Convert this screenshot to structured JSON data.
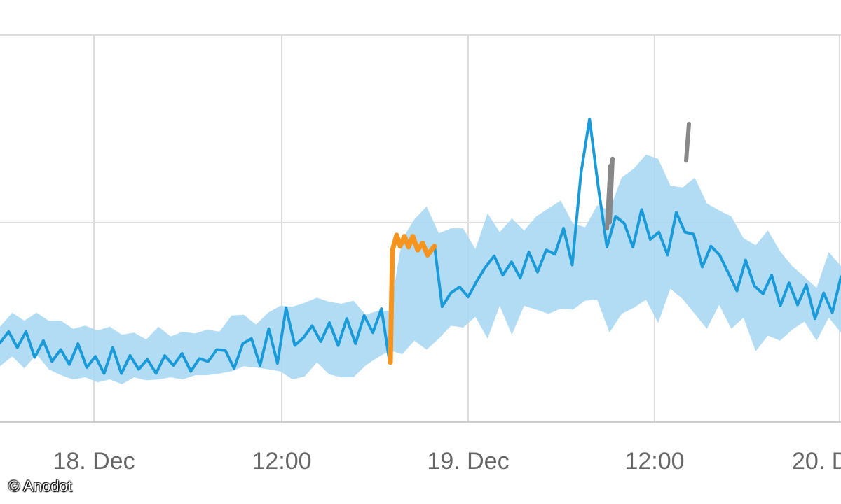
{
  "chart_data": {
    "type": "line",
    "title": "",
    "xlabel": "",
    "ylabel": "",
    "x_tick_labels": [
      "18. Dec",
      "12:00",
      "19. Dec",
      "12:00",
      "20. D"
    ],
    "grid": true,
    "legend": "none",
    "colors": {
      "series": "#1a9ad9",
      "band": "#a9d8f2",
      "anomaly_orange": "#f7941d",
      "anomaly_gray": "#888888",
      "grid": "#dddddd",
      "axis": "#cccccc",
      "tick_label": "#666666"
    },
    "series": [
      {
        "values": [
          26.6,
          30.3,
          25.0,
          30.3,
          21.7,
          27.3,
          20.3,
          24.3,
          19.3,
          26.3,
          18.3,
          22.0,
          16.3,
          25.0,
          16.3,
          22.3,
          17.7,
          21.0,
          16.3,
          22.3,
          19.0,
          23.0,
          17.0,
          21.3,
          20.3,
          24.3,
          24.0,
          18.0,
          26.3,
          28.0,
          19.0,
          31.3,
          19.7,
          38.3,
          25.7,
          28.3,
          32.3,
          27.0,
          33.3,
          25.7,
          34.7,
          26.3,
          35.7,
          30.0,
          38.0,
          26.7,
          20.3,
          20.0,
          20.7,
          24.7,
          41.3,
          38.7,
          43.3,
          45.3,
          42.0,
          47.3,
          52.0,
          55.7,
          49.3,
          53.7,
          48.3,
          57.0,
          50.3,
          57.7,
          56.3,
          65.0,
          52.7,
          83.3,
          101.7,
          79.0,
          58.7,
          69.0,
          66.7,
          58.7,
          71.3,
          61.3,
          63.7,
          56.0,
          70.3,
          63.7,
          63.0,
          52.0,
          59.0,
          56.0,
          50.0,
          44.0,
          54.3,
          45.7,
          43.0,
          49.3,
          39.0,
          46.7,
          39.3,
          46.0,
          34.7,
          43.3,
          36.7,
          48.7
        ]
      }
    ],
    "confidence_band": {
      "upper": [
        32.0,
        36.7,
        34.0,
        36.7,
        34.0,
        34.0,
        31.3,
        32.3,
        30.7,
        32.0,
        29.3,
        30.0,
        27.7,
        32.0,
        28.7,
        30.3,
        29.7,
        31.0,
        30.3,
        35.7,
        36.0,
        32.7,
        36.7,
        39.0,
        38.7,
        40.0,
        41.7,
        40.3,
        39.7,
        40.7,
        36.0,
        37.3,
        37.3,
        61.3,
        68.0,
        72.3,
        63.3,
        65.0,
        65.0,
        58.0,
        70.0,
        63.7,
        68.3,
        64.3,
        69.0,
        71.7,
        74.3,
        66.7,
        65.3,
        72.7,
        71.0,
        82.0,
        85.0,
        89.7,
        88.3,
        79.3,
        78.7,
        82.0,
        73.3,
        71.0,
        69.0,
        61.7,
        59.3,
        64.3,
        57.3,
        52.3,
        48.7,
        45.0,
        57.0,
        52.3
      ],
      "lower": [
        18.7,
        22.0,
        18.0,
        22.7,
        17.7,
        15.7,
        14.3,
        15.0,
        13.3,
        14.3,
        12.7,
        15.0,
        14.0,
        14.3,
        15.0,
        14.3,
        15.7,
        15.7,
        16.3,
        17.0,
        18.7,
        18.3,
        17.7,
        17.0,
        14.3,
        15.3,
        20.0,
        16.0,
        15.0,
        15.0,
        19.0,
        21.7,
        24.0,
        22.7,
        27.3,
        24.3,
        28.0,
        32.3,
        31.7,
        35.3,
        28.0,
        39.0,
        29.3,
        39.0,
        37.7,
        36.3,
        38.0,
        37.7,
        40.7,
        41.0,
        30.0,
        36.3,
        38.3,
        41.0,
        33.3,
        44.7,
        41.3,
        36.3,
        31.3,
        39.3,
        31.3,
        35.0,
        23.7,
        29.0,
        27.3,
        31.0,
        33.7,
        27.3,
        35.0,
        30.0
      ]
    },
    "anomalies": [
      {
        "color": "orange",
        "values": [
          20.0,
          57.7,
          62.7,
          59.0,
          62.3,
          58.7,
          62.3,
          57.7,
          60.0,
          56.0,
          59.0
        ]
      },
      {
        "color": "gray",
        "values": [
          65.0,
          86.0
        ]
      },
      {
        "color": "gray",
        "values": [
          87.7,
          100.0
        ]
      },
      {
        "color": "gray",
        "values": [
          67.0,
          88.3
        ]
      }
    ]
  },
  "credit": "© Anodot"
}
